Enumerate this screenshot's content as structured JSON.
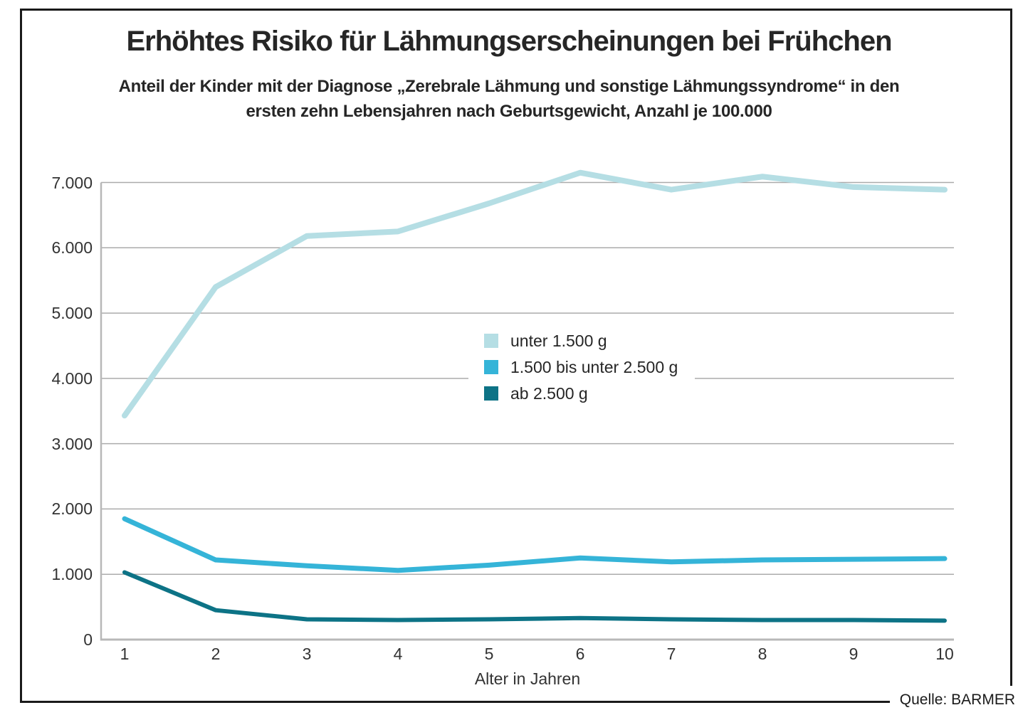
{
  "chart_data": {
    "type": "line",
    "title": "Erhöhtes Risiko für Lähmungserscheinungen bei Frühchen",
    "subtitle_lines": [
      "Anteil der Kinder mit der Diagnose „Zerebrale Lähmung und sonstige Lähmungssyndrome“ in den",
      "ersten zehn Lebensjahren nach Geburtsgewicht, Anzahl je 100.000"
    ],
    "xlabel": "Alter in Jahren",
    "x": [
      1,
      2,
      3,
      4,
      5,
      6,
      7,
      8,
      9,
      10
    ],
    "xtick_labels": [
      "1",
      "2",
      "3",
      "4",
      "5",
      "6",
      "7",
      "8",
      "9",
      "10"
    ],
    "ylim": [
      0,
      7000
    ],
    "ytick_values": [
      0,
      1000,
      2000,
      3000,
      4000,
      5000,
      6000,
      7000
    ],
    "ytick_labels": [
      "0",
      "1.000",
      "2.000",
      "3.000",
      "4.000",
      "5.000",
      "6.000",
      "7.000"
    ],
    "grid": "horizontal",
    "legend_position": "center",
    "series": [
      {
        "name": "unter 1.500 g",
        "color": "#b5dee4",
        "values": [
          3430,
          5400,
          6180,
          6250,
          6680,
          7150,
          6890,
          7090,
          6930,
          6890
        ]
      },
      {
        "name": "1.500 bis unter 2.500 g",
        "color": "#35b4d8",
        "values": [
          1850,
          1220,
          1130,
          1060,
          1140,
          1250,
          1190,
          1220,
          1230,
          1240
        ]
      },
      {
        "name": "ab 2.500 g",
        "color": "#0d7386",
        "values": [
          1030,
          450,
          310,
          300,
          310,
          330,
          310,
          300,
          300,
          290
        ]
      }
    ],
    "source": "Quelle: BARMER"
  },
  "colors": {
    "frame": "#1a1a1a",
    "gridline": "#ababab",
    "axis": "#b8b8b8",
    "text": "#262626"
  }
}
